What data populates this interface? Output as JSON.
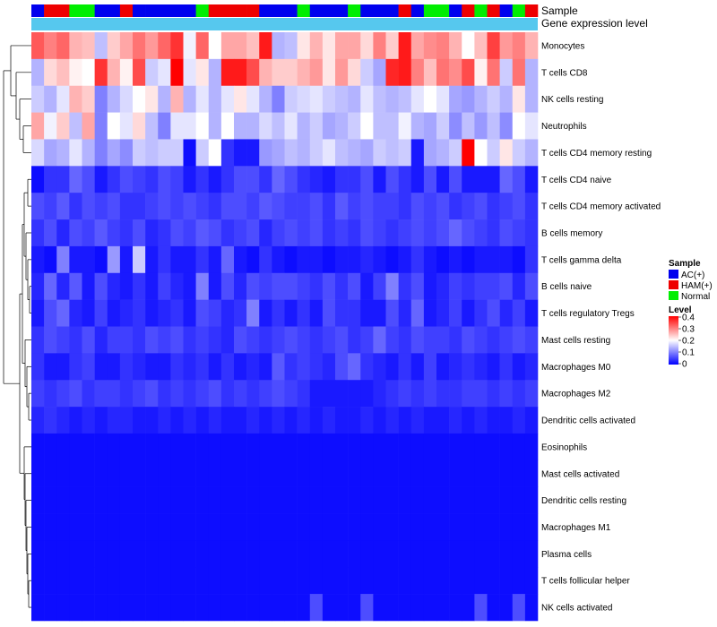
{
  "chart_data": {
    "type": "heatmap",
    "title": "",
    "annotations": [
      {
        "name": "Sample"
      },
      {
        "name": "Gene expression level"
      }
    ],
    "rows": [
      "Monocytes",
      "T cells CD8",
      "NK cells resting",
      "Neutrophils",
      "T cells CD4 memory resting",
      "T cells CD4 naive",
      "T cells CD4 memory activated",
      "B cells memory",
      "T cells gamma delta",
      "B cells naive",
      "T cells regulatory  Tregs",
      "Mast cells resting",
      "Macrophages M0",
      "Macrophages M2",
      "Dendritic cells activated",
      "Eosinophils",
      "Mast cells activated",
      "Dendritic cells resting",
      "Macrophages M1",
      "Plasma cells",
      "T cells follicular helper",
      "NK cells activated"
    ],
    "sample_groups": [
      "AC",
      "HAM",
      "HAM",
      "NO",
      "NO",
      "AC",
      "AC",
      "HAM",
      "AC",
      "AC",
      "AC",
      "AC",
      "AC",
      "NO",
      "HAM",
      "HAM",
      "HAM",
      "HAM",
      "AC",
      "AC",
      "AC",
      "NO",
      "AC",
      "AC",
      "AC",
      "NO",
      "AC",
      "AC",
      "AC",
      "HAM",
      "AC",
      "NO",
      "NO",
      "AC",
      "HAM",
      "NO",
      "HAM",
      "AC",
      "NO",
      "HAM"
    ],
    "values": [
      [
        0.33,
        0.3,
        0.32,
        0.26,
        0.25,
        0.15,
        0.24,
        0.27,
        0.31,
        0.28,
        0.32,
        0.36,
        0.19,
        0.32,
        0.2,
        0.27,
        0.27,
        0.25,
        0.38,
        0.14,
        0.15,
        0.22,
        0.26,
        0.22,
        0.27,
        0.27,
        0.23,
        0.3,
        0.24,
        0.38,
        0.27,
        0.29,
        0.3,
        0.26,
        0.2,
        0.25,
        0.35,
        0.28,
        0.3,
        0.26
      ],
      [
        0.14,
        0.23,
        0.25,
        0.21,
        0.2,
        0.36,
        0.26,
        0.21,
        0.34,
        0.16,
        0.18,
        0.4,
        0.18,
        0.22,
        0.14,
        0.38,
        0.38,
        0.34,
        0.26,
        0.24,
        0.24,
        0.26,
        0.28,
        0.22,
        0.28,
        0.23,
        0.16,
        0.13,
        0.37,
        0.38,
        0.3,
        0.25,
        0.31,
        0.29,
        0.34,
        0.21,
        0.31,
        0.16,
        0.31,
        0.14
      ],
      [
        0.16,
        0.14,
        0.18,
        0.26,
        0.24,
        0.1,
        0.14,
        0.17,
        0.2,
        0.22,
        0.14,
        0.26,
        0.14,
        0.18,
        0.14,
        0.18,
        0.22,
        0.18,
        0.14,
        0.1,
        0.16,
        0.17,
        0.18,
        0.16,
        0.15,
        0.14,
        0.18,
        0.15,
        0.14,
        0.15,
        0.18,
        0.2,
        0.18,
        0.13,
        0.12,
        0.14,
        0.16,
        0.14,
        0.22,
        0.14
      ],
      [
        0.27,
        0.19,
        0.24,
        0.15,
        0.27,
        0.1,
        0.2,
        0.18,
        0.23,
        0.15,
        0.1,
        0.18,
        0.18,
        0.2,
        0.14,
        0.2,
        0.14,
        0.14,
        0.17,
        0.15,
        0.18,
        0.14,
        0.16,
        0.13,
        0.14,
        0.16,
        0.2,
        0.15,
        0.15,
        0.19,
        0.14,
        0.13,
        0.16,
        0.11,
        0.15,
        0.12,
        0.15,
        0.11,
        0.2,
        0.18
      ],
      [
        0.17,
        0.13,
        0.14,
        0.18,
        0.14,
        0.1,
        0.13,
        0.11,
        0.16,
        0.15,
        0.16,
        0.16,
        0.01,
        0.16,
        0.2,
        0.04,
        0.02,
        0.02,
        0.12,
        0.13,
        0.15,
        0.14,
        0.16,
        0.18,
        0.15,
        0.14,
        0.13,
        0.16,
        0.15,
        0.16,
        0.02,
        0.13,
        0.14,
        0.16,
        0.4,
        0.2,
        0.16,
        0.22,
        0.16,
        0.14
      ],
      [
        0.01,
        0.04,
        0.04,
        0.08,
        0.06,
        0.02,
        0.04,
        0.06,
        0.05,
        0.04,
        0.06,
        0.05,
        0.02,
        0.04,
        0.02,
        0.04,
        0.06,
        0.06,
        0.04,
        0.08,
        0.06,
        0.04,
        0.03,
        0.02,
        0.04,
        0.04,
        0.06,
        0.02,
        0.06,
        0.04,
        0.02,
        0.06,
        0.02,
        0.06,
        0.02,
        0.02,
        0.02,
        0.08,
        0.06,
        0.02
      ],
      [
        0.06,
        0.05,
        0.07,
        0.04,
        0.06,
        0.05,
        0.06,
        0.04,
        0.04,
        0.05,
        0.06,
        0.05,
        0.06,
        0.05,
        0.04,
        0.06,
        0.06,
        0.05,
        0.07,
        0.06,
        0.05,
        0.05,
        0.06,
        0.04,
        0.07,
        0.05,
        0.06,
        0.05,
        0.05,
        0.04,
        0.06,
        0.05,
        0.06,
        0.04,
        0.05,
        0.06,
        0.04,
        0.05,
        0.06,
        0.04
      ],
      [
        0.04,
        0.06,
        0.03,
        0.06,
        0.05,
        0.07,
        0.05,
        0.04,
        0.06,
        0.03,
        0.04,
        0.06,
        0.05,
        0.07,
        0.06,
        0.04,
        0.05,
        0.06,
        0.03,
        0.05,
        0.06,
        0.05,
        0.06,
        0.04,
        0.05,
        0.04,
        0.06,
        0.05,
        0.04,
        0.05,
        0.06,
        0.05,
        0.06,
        0.08,
        0.06,
        0.05,
        0.04,
        0.06,
        0.05,
        0.04
      ],
      [
        0.02,
        0.01,
        0.1,
        0.02,
        0.02,
        0.01,
        0.12,
        0.02,
        0.16,
        0.02,
        0.04,
        0.02,
        0.02,
        0.04,
        0.02,
        0.08,
        0.02,
        0.01,
        0.04,
        0.02,
        0.01,
        0.02,
        0.02,
        0.01,
        0.02,
        0.02,
        0.03,
        0.02,
        0.01,
        0.02,
        0.04,
        0.02,
        0.01,
        0.02,
        0.01,
        0.02,
        0.02,
        0.02,
        0.01,
        0.04
      ],
      [
        0.03,
        0.08,
        0.03,
        0.07,
        0.02,
        0.06,
        0.03,
        0.02,
        0.04,
        0.02,
        0.05,
        0.03,
        0.02,
        0.1,
        0.02,
        0.06,
        0.03,
        0.06,
        0.05,
        0.06,
        0.06,
        0.05,
        0.04,
        0.06,
        0.04,
        0.06,
        0.02,
        0.05,
        0.1,
        0.04,
        0.06,
        0.02,
        0.03,
        0.05,
        0.04,
        0.05,
        0.05,
        0.06,
        0.03,
        0.06
      ],
      [
        0.02,
        0.06,
        0.08,
        0.03,
        0.02,
        0.05,
        0.02,
        0.03,
        0.04,
        0.02,
        0.03,
        0.04,
        0.02,
        0.06,
        0.05,
        0.03,
        0.04,
        0.1,
        0.02,
        0.04,
        0.02,
        0.04,
        0.02,
        0.06,
        0.04,
        0.04,
        0.02,
        0.02,
        0.06,
        0.03,
        0.08,
        0.02,
        0.03,
        0.05,
        0.02,
        0.04,
        0.06,
        0.03,
        0.05,
        0.02
      ],
      [
        0.04,
        0.06,
        0.05,
        0.04,
        0.06,
        0.03,
        0.05,
        0.05,
        0.04,
        0.06,
        0.05,
        0.06,
        0.04,
        0.05,
        0.04,
        0.03,
        0.06,
        0.05,
        0.04,
        0.05,
        0.06,
        0.05,
        0.04,
        0.05,
        0.06,
        0.04,
        0.05,
        0.08,
        0.05,
        0.04,
        0.06,
        0.05,
        0.05,
        0.04,
        0.06,
        0.05,
        0.04,
        0.05,
        0.06,
        0.05
      ],
      [
        0.04,
        0.02,
        0.02,
        0.04,
        0.05,
        0.02,
        0.02,
        0.04,
        0.03,
        0.02,
        0.02,
        0.04,
        0.03,
        0.04,
        0.02,
        0.04,
        0.02,
        0.03,
        0.02,
        0.07,
        0.04,
        0.05,
        0.04,
        0.03,
        0.06,
        0.08,
        0.04,
        0.03,
        0.02,
        0.04,
        0.02,
        0.05,
        0.02,
        0.03,
        0.04,
        0.03,
        0.02,
        0.04,
        0.02,
        0.03
      ],
      [
        0.05,
        0.04,
        0.05,
        0.06,
        0.04,
        0.05,
        0.05,
        0.04,
        0.05,
        0.06,
        0.04,
        0.05,
        0.04,
        0.05,
        0.06,
        0.04,
        0.05,
        0.04,
        0.05,
        0.06,
        0.05,
        0.04,
        0.02,
        0.02,
        0.02,
        0.02,
        0.02,
        0.03,
        0.04,
        0.05,
        0.04,
        0.05,
        0.04,
        0.04,
        0.05,
        0.05,
        0.04,
        0.05,
        0.04,
        0.05
      ],
      [
        0.03,
        0.04,
        0.03,
        0.02,
        0.03,
        0.02,
        0.03,
        0.03,
        0.02,
        0.02,
        0.03,
        0.02,
        0.03,
        0.02,
        0.03,
        0.02,
        0.02,
        0.03,
        0.02,
        0.03,
        0.02,
        0.03,
        0.02,
        0.03,
        0.02,
        0.02,
        0.03,
        0.02,
        0.03,
        0.02,
        0.03,
        0.02,
        0.02,
        0.03,
        0.02,
        0.03,
        0.02,
        0.02,
        0.03,
        0.02
      ],
      [
        0.01,
        0.01,
        0.01,
        0.01,
        0.01,
        0.01,
        0.01,
        0.01,
        0.01,
        0.01,
        0.01,
        0.01,
        0.01,
        0.01,
        0.01,
        0.01,
        0.01,
        0.01,
        0.01,
        0.01,
        0.01,
        0.01,
        0.01,
        0.01,
        0.01,
        0.01,
        0.01,
        0.01,
        0.01,
        0.01,
        0.01,
        0.01,
        0.01,
        0.01,
        0.01,
        0.01,
        0.01,
        0.01,
        0.01,
        0.01
      ],
      [
        0.01,
        0.01,
        0.01,
        0.01,
        0.01,
        0.01,
        0.01,
        0.01,
        0.01,
        0.01,
        0.01,
        0.01,
        0.01,
        0.01,
        0.01,
        0.01,
        0.01,
        0.01,
        0.01,
        0.01,
        0.01,
        0.01,
        0.01,
        0.01,
        0.01,
        0.01,
        0.01,
        0.01,
        0.01,
        0.01,
        0.01,
        0.01,
        0.01,
        0.01,
        0.01,
        0.01,
        0.01,
        0.01,
        0.01,
        0.01
      ],
      [
        0.01,
        0.01,
        0.01,
        0.01,
        0.01,
        0.01,
        0.01,
        0.01,
        0.01,
        0.01,
        0.01,
        0.01,
        0.01,
        0.01,
        0.01,
        0.01,
        0.01,
        0.01,
        0.01,
        0.01,
        0.01,
        0.01,
        0.01,
        0.01,
        0.01,
        0.01,
        0.01,
        0.01,
        0.01,
        0.01,
        0.01,
        0.01,
        0.01,
        0.01,
        0.01,
        0.01,
        0.01,
        0.01,
        0.01,
        0.01
      ],
      [
        0.01,
        0.01,
        0.01,
        0.01,
        0.01,
        0.01,
        0.01,
        0.01,
        0.01,
        0.01,
        0.01,
        0.01,
        0.01,
        0.01,
        0.01,
        0.01,
        0.01,
        0.01,
        0.01,
        0.01,
        0.01,
        0.01,
        0.01,
        0.01,
        0.01,
        0.01,
        0.01,
        0.01,
        0.01,
        0.01,
        0.01,
        0.01,
        0.01,
        0.01,
        0.01,
        0.01,
        0.01,
        0.01,
        0.01,
        0.01
      ],
      [
        0.01,
        0.01,
        0.01,
        0.01,
        0.01,
        0.01,
        0.01,
        0.01,
        0.01,
        0.01,
        0.01,
        0.01,
        0.01,
        0.01,
        0.01,
        0.01,
        0.01,
        0.01,
        0.01,
        0.01,
        0.01,
        0.01,
        0.01,
        0.01,
        0.01,
        0.01,
        0.01,
        0.01,
        0.01,
        0.01,
        0.01,
        0.01,
        0.01,
        0.01,
        0.01,
        0.01,
        0.01,
        0.01,
        0.01,
        0.01
      ],
      [
        0.01,
        0.01,
        0.01,
        0.01,
        0.01,
        0.01,
        0.01,
        0.01,
        0.01,
        0.01,
        0.01,
        0.01,
        0.01,
        0.01,
        0.01,
        0.01,
        0.01,
        0.01,
        0.01,
        0.01,
        0.01,
        0.01,
        0.01,
        0.01,
        0.01,
        0.01,
        0.01,
        0.01,
        0.01,
        0.01,
        0.01,
        0.01,
        0.01,
        0.01,
        0.01,
        0.01,
        0.01,
        0.01,
        0.01,
        0.01
      ],
      [
        0.01,
        0.01,
        0.01,
        0.01,
        0.01,
        0.01,
        0.01,
        0.01,
        0.01,
        0.01,
        0.01,
        0.01,
        0.01,
        0.01,
        0.01,
        0.01,
        0.01,
        0.01,
        0.01,
        0.01,
        0.01,
        0.01,
        0.06,
        0.01,
        0.01,
        0.01,
        0.06,
        0.01,
        0.01,
        0.01,
        0.01,
        0.01,
        0.01,
        0.01,
        0.01,
        0.06,
        0.01,
        0.01,
        0.06,
        0.01
      ]
    ],
    "color_scale": {
      "min": 0,
      "mid": 0.2,
      "max": 0.4,
      "low": "#0000ff",
      "mid_color": "#ffffff",
      "high": "#ff0000"
    },
    "legend": {
      "sample_title": "Sample",
      "sample_items": [
        {
          "key": "AC",
          "label": "AC(+)",
          "color": "#0000ee"
        },
        {
          "key": "HAM",
          "label": "HAM(+)",
          "color": "#ee0000"
        },
        {
          "key": "NO",
          "label": "Normal",
          "color": "#00ee00"
        }
      ],
      "level_title": "Level",
      "level_ticks": [
        "0.4",
        "0.3",
        "0.2",
        "0.1",
        "0"
      ],
      "placement": "right"
    },
    "gene_expression_color": "#56c8ee",
    "dendrogram": "rows"
  }
}
